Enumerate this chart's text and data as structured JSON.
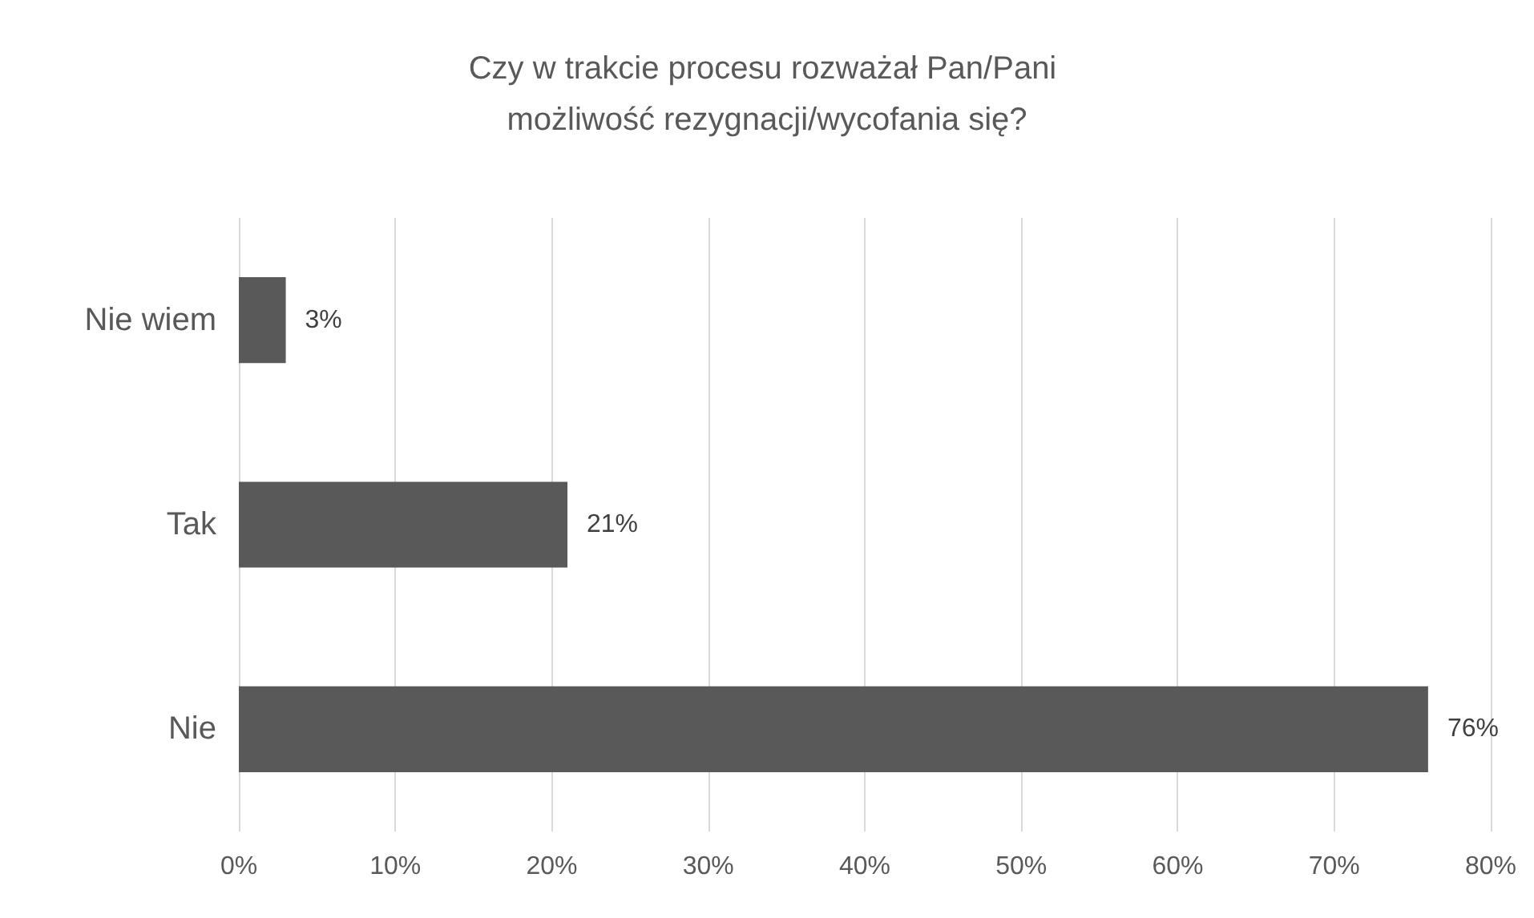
{
  "chart_data": {
    "type": "bar",
    "orientation": "horizontal",
    "title": "Czy w trakcie procesu rozważał Pan/Pani możliwość rezygnacji/wycofania się?",
    "categories": [
      "Nie wiem",
      "Tak",
      "Nie"
    ],
    "values": [
      3,
      21,
      76
    ],
    "value_labels": [
      "3%",
      "21%",
      "76%"
    ],
    "color": "#595959",
    "xlim": [
      0,
      80
    ],
    "xticks": [
      {
        "value": 0,
        "label": "0%"
      },
      {
        "value": 10,
        "label": "10%"
      },
      {
        "value": 20,
        "label": "20%"
      },
      {
        "value": 30,
        "label": "30%"
      },
      {
        "value": 40,
        "label": "40%"
      },
      {
        "value": 50,
        "label": "50%"
      },
      {
        "value": 60,
        "label": "60%"
      },
      {
        "value": 70,
        "label": "70%"
      },
      {
        "value": 80,
        "label": "80%"
      }
    ],
    "grid": "x"
  }
}
